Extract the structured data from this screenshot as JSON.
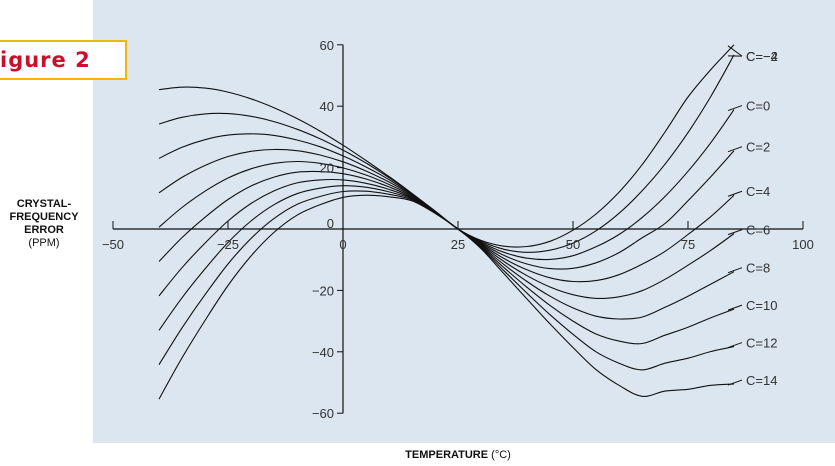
{
  "figure_label": "igure 2",
  "y_axis_label": {
    "line1": "CRYSTAL-",
    "line2": "FREQUENCY",
    "line3": "ERROR",
    "units": "(PPM)"
  },
  "x_axis_label": {
    "title": "TEMPERATURE",
    "units": "(°C)"
  },
  "colors": {
    "plot_background": "#dbe6f1",
    "figure_border": "#f2b705",
    "figure_text": "#c8102e",
    "curves": "#111111"
  },
  "chart_data": {
    "type": "line",
    "title": "",
    "xlabel": "TEMPERATURE (°C)",
    "ylabel": "CRYSTAL-FREQUENCY ERROR (PPM)",
    "xlim": [
      -50,
      100
    ],
    "ylim": [
      -60,
      60
    ],
    "x_ticks": [
      -50,
      -25,
      0,
      25,
      50,
      75,
      100
    ],
    "x_tick_labels": [
      "−50",
      "−25",
      "0",
      "25",
      "50",
      "75",
      "100"
    ],
    "y_ticks": [
      -60,
      -40,
      -20,
      0,
      20,
      40,
      60
    ],
    "y_tick_labels": [
      "−60",
      "−40",
      "−20",
      "0",
      "20",
      "40",
      "60"
    ],
    "grid": false,
    "x": [
      -40,
      -35,
      -30,
      -25,
      -20,
      -15,
      -10,
      -5,
      0,
      5,
      10,
      15,
      20,
      25,
      30,
      35,
      40,
      45,
      50,
      55,
      60,
      65,
      70,
      75,
      80,
      85
    ],
    "series": [
      {
        "name": "C=−4",
        "values": [
          45.4,
          46.2,
          45.9,
          44.6,
          42.4,
          39.5,
          36.0,
          31.9,
          27.3,
          22.3,
          17.1,
          11.6,
          5.8,
          0.0,
          -3.7,
          -5.6,
          -5.7,
          -4.0,
          -0.4,
          4.9,
          12.0,
          20.9,
          31.6,
          43.0,
          52.0,
          60.0
        ]
      },
      {
        "name": "C=−2",
        "values": [
          34.2,
          36.4,
          37.5,
          37.6,
          36.7,
          35.0,
          32.5,
          29.4,
          25.7,
          21.5,
          16.7,
          11.5,
          5.9,
          0.0,
          -4.0,
          -6.6,
          -7.6,
          -6.9,
          -4.6,
          -0.6,
          5.1,
          12.4,
          21.1,
          31.4,
          43.3,
          56.7
        ]
      },
      {
        "name": "C=0",
        "values": [
          23.0,
          26.6,
          29.1,
          30.6,
          31.0,
          30.5,
          29.0,
          26.8,
          23.8,
          20.2,
          16.1,
          11.2,
          5.8,
          0.0,
          -4.3,
          -7.6,
          -9.5,
          -9.9,
          -8.7,
          -5.8,
          -1.8,
          3.7,
          10.6,
          18.8,
          28.2,
          38.9
        ]
      },
      {
        "name": "C=2",
        "values": [
          11.8,
          16.8,
          20.7,
          23.6,
          25.3,
          25.9,
          25.5,
          24.1,
          21.9,
          18.9,
          15.3,
          11.0,
          5.7,
          0.0,
          -4.6,
          -8.6,
          -11.4,
          -12.9,
          -12.8,
          -11.0,
          -7.7,
          -2.9,
          1.8,
          9.2,
          17.1,
          25.5
        ]
      },
      {
        "name": "C=4",
        "values": [
          0.6,
          7.0,
          12.3,
          16.6,
          19.6,
          21.4,
          22.0,
          21.4,
          19.9,
          17.6,
          14.5,
          10.7,
          5.6,
          0.0,
          -4.9,
          -9.6,
          -13.3,
          -15.9,
          -17.1,
          -16.8,
          -14.9,
          -11.5,
          -7.3,
          -1.8,
          4.1,
          11.0
        ]
      },
      {
        "name": "C=6",
        "values": [
          -10.6,
          -2.8,
          3.8,
          9.6,
          14.0,
          16.9,
          18.5,
          18.7,
          18.0,
          16.3,
          13.7,
          10.4,
          5.5,
          0.0,
          -5.2,
          -10.6,
          -15.2,
          -18.9,
          -21.4,
          -22.6,
          -22.1,
          -20.1,
          -16.4,
          -11.8,
          -6.9,
          -1.5
        ]
      },
      {
        "name": "C=8",
        "values": [
          -21.8,
          -12.6,
          -4.6,
          2.6,
          8.3,
          12.4,
          15.0,
          16.0,
          16.0,
          14.9,
          12.9,
          10.1,
          5.4,
          0.0,
          -5.5,
          -11.6,
          -17.1,
          -21.9,
          -25.7,
          -28.4,
          -29.3,
          -28.7,
          -25.5,
          -21.9,
          -17.9,
          -13.9
        ]
      },
      {
        "name": "C=10",
        "values": [
          -33.0,
          -22.4,
          -13.0,
          -4.4,
          2.6,
          7.9,
          11.5,
          13.3,
          14.1,
          13.6,
          12.1,
          9.8,
          5.3,
          0.0,
          -5.8,
          -12.6,
          -19.0,
          -24.9,
          -30.0,
          -34.2,
          -36.5,
          -37.3,
          -34.6,
          -32.0,
          -28.9,
          -26.1
        ]
      },
      {
        "name": "C=12",
        "values": [
          -44.2,
          -32.2,
          -21.4,
          -11.4,
          -3.1,
          3.4,
          8.0,
          10.6,
          12.2,
          12.3,
          11.3,
          9.5,
          5.2,
          0.0,
          -6.1,
          -13.6,
          -20.9,
          -27.9,
          -34.3,
          -40.0,
          -43.7,
          -45.9,
          -43.7,
          -42.1,
          -39.9,
          -38.3
        ]
      },
      {
        "name": "C=14",
        "values": [
          -55.4,
          -42.0,
          -29.8,
          -18.4,
          -8.8,
          -1.1,
          4.5,
          7.9,
          10.3,
          11.0,
          10.5,
          9.2,
          5.1,
          0.0,
          -6.4,
          -14.6,
          -22.8,
          -30.9,
          -38.6,
          -45.8,
          -50.9,
          -54.5,
          -52.8,
          -52.2,
          -50.9,
          -50.5
        ]
      }
    ]
  }
}
